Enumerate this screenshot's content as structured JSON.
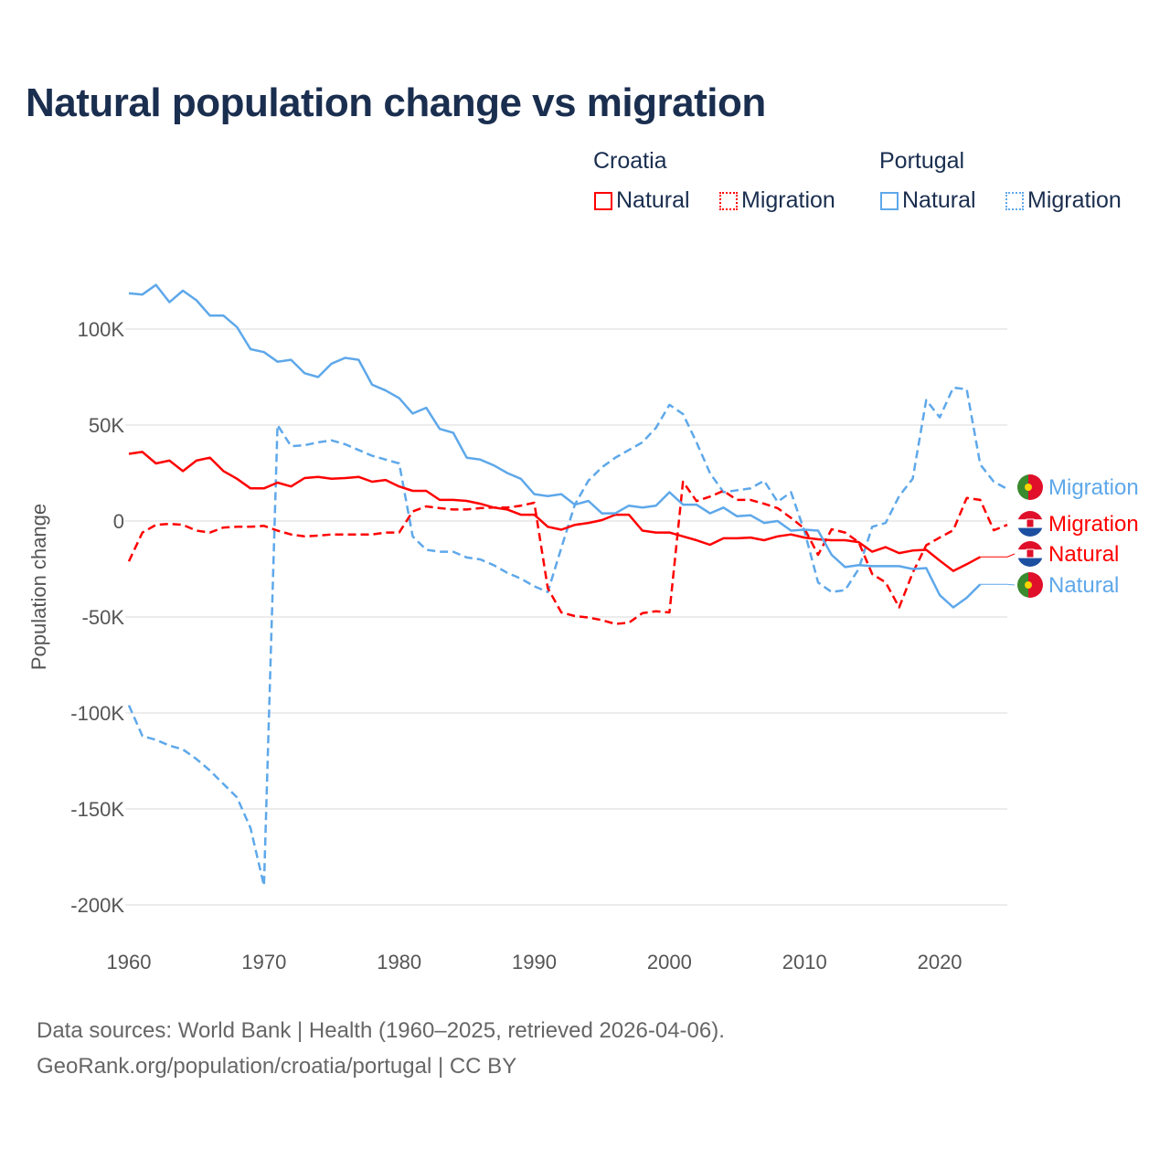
{
  "title": "Natural population change vs migration",
  "legend": {
    "groups": [
      {
        "name": "Croatia",
        "items": [
          {
            "label": "Natural",
            "style": "solid"
          },
          {
            "label": "Migration",
            "style": "dotted"
          }
        ],
        "color": "#ff0000"
      },
      {
        "name": "Portugal",
        "items": [
          {
            "label": "Natural",
            "style": "solid"
          },
          {
            "label": "Migration",
            "style": "dotted"
          }
        ],
        "color": "#5ea8ea"
      }
    ]
  },
  "source": [
    "Data sources: World Bank | Health (1960–2025, retrieved 2026-04-06).",
    "GeoRank.org/population/croatia/portugal | CC BY"
  ],
  "chart_data": {
    "type": "line",
    "title": "Natural population change vs migration",
    "xlabel": "",
    "ylabel": "Population change",
    "xlim": [
      1960,
      2025
    ],
    "ylim": [
      -200000,
      125000
    ],
    "x_ticks": [
      1960,
      1970,
      1980,
      1990,
      2000,
      2010,
      2020
    ],
    "y_ticks": [
      {
        "v": 100000,
        "label": "100K"
      },
      {
        "v": 50000,
        "label": "50K"
      },
      {
        "v": 0,
        "label": "0"
      },
      {
        "v": -50000,
        "label": "-50K"
      },
      {
        "v": -100000,
        "label": "-100K"
      },
      {
        "v": -150000,
        "label": "-150K"
      },
      {
        "v": -200000,
        "label": "-200K"
      }
    ],
    "grid": true,
    "legend_position": "top-right",
    "series": [
      {
        "name": "Portugal Migration",
        "country": "Portugal",
        "kind": "Migration",
        "end_label": "Migration",
        "color": "#5ea8ea",
        "dash": true,
        "start": 1960,
        "values_k": [
          -96,
          -112,
          -114,
          -117,
          -119,
          -124,
          -130,
          -137,
          -144,
          -160,
          -190,
          50,
          39,
          39.5,
          41,
          42,
          40,
          37,
          34,
          32,
          30,
          -8,
          -15,
          -16,
          -16,
          -19,
          -20,
          -23,
          -27,
          -30,
          -34,
          -37,
          -14,
          8.5,
          21,
          28,
          33,
          37,
          41,
          48.5,
          60.5,
          55.7,
          41,
          25,
          15,
          16,
          17,
          21,
          10,
          15,
          -5.5,
          -32,
          -37,
          -36,
          -25,
          -3,
          -1,
          13,
          22,
          63,
          54,
          69.5,
          68.6,
          29.5,
          20.5,
          16.7
        ]
      },
      {
        "name": "Croatia Migration",
        "country": "Croatia",
        "kind": "Migration",
        "end_label": "Migration",
        "color": "#ff0000",
        "dash": true,
        "start": 1960,
        "values_k": [
          -21,
          -6,
          -2,
          -1.5,
          -2,
          -5,
          -6,
          -3.4,
          -3,
          -3,
          -2.5,
          -5,
          -7,
          -8,
          -7.6,
          -7,
          -7,
          -7,
          -7,
          -6,
          -6,
          5,
          7.6,
          6.7,
          6,
          6,
          6.7,
          7,
          7,
          8,
          9.5,
          -35,
          -47.6,
          -49.5,
          -50.3,
          -51.6,
          -53.6,
          -53,
          -48,
          -47,
          -47.6,
          20.5,
          10.4,
          12.7,
          15.7,
          11,
          11,
          9,
          6.7,
          1.6,
          -4,
          -17.6,
          -4.3,
          -6,
          -11,
          -27.6,
          -32,
          -45,
          -27,
          -12.6,
          -8.6,
          -4.8,
          12,
          11,
          -4.8,
          -2
        ]
      },
      {
        "name": "Croatia Natural",
        "country": "Croatia",
        "kind": "Natural",
        "end_label": "Natural",
        "color": "#ff0000",
        "dash": false,
        "start": 1960,
        "values_k": [
          35,
          36,
          30,
          31.5,
          26,
          31.5,
          33,
          26,
          22,
          17,
          17,
          20,
          18,
          22.4,
          23,
          22,
          22.4,
          23,
          20.5,
          21.4,
          18,
          15.7,
          15.7,
          11,
          11,
          10.5,
          9,
          7,
          6,
          3.3,
          3.3,
          -3,
          -4.5,
          -2,
          -1,
          0.5,
          3.3,
          3.3,
          -5,
          -6,
          -6,
          -8,
          -10,
          -12.4,
          -9,
          -9,
          -8.6,
          -10,
          -8,
          -7,
          -8.6,
          -9.5,
          -10,
          -10,
          -11,
          -16,
          -13.6,
          -16.7,
          -15.4,
          -15,
          -20.6,
          -26,
          -22.5,
          -18.7
        ]
      },
      {
        "name": "Portugal Natural",
        "country": "Portugal",
        "kind": "Natural",
        "end_label": "Natural",
        "color": "#5ea8ea",
        "dash": false,
        "start": 1960,
        "values_k": [
          118.6,
          118,
          123,
          114,
          120,
          115,
          107,
          107,
          101,
          89.5,
          88,
          83,
          84,
          77,
          75,
          82,
          85,
          84,
          71,
          68,
          64,
          56,
          59,
          48,
          46,
          33,
          32,
          29,
          25,
          22,
          14,
          13,
          14,
          8.5,
          10.5,
          4,
          4,
          8,
          7,
          8,
          15,
          8.5,
          8.5,
          4,
          7,
          2.5,
          3,
          -1,
          0,
          -5,
          -4.5,
          -5,
          -17.6,
          -24,
          -23,
          -23.5,
          -23.5,
          -23.5,
          -25,
          -24.5,
          -38.6,
          -45,
          -40,
          -33
        ]
      }
    ]
  }
}
